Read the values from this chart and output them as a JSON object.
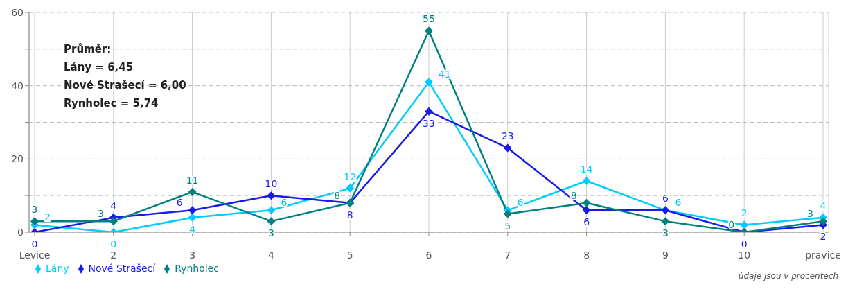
{
  "chart_data": {
    "type": "line",
    "categories": [
      "Levice",
      "2",
      "3",
      "4",
      "5",
      "6",
      "7",
      "8",
      "9",
      "10",
      "pravice"
    ],
    "series": [
      {
        "name": "Lány",
        "color": "#00ccff",
        "values": [
          2,
          0,
          4,
          6,
          12,
          41,
          6,
          14,
          6,
          2,
          4
        ]
      },
      {
        "name": "Nové Strašecí",
        "color": "#1a1aee",
        "values": [
          0,
          4,
          6,
          10,
          8,
          33,
          23,
          6,
          6,
          0,
          2
        ]
      },
      {
        "name": "Rynholec",
        "color": "#008080",
        "values": [
          3,
          3,
          11,
          3,
          8,
          55,
          5,
          8,
          3,
          0,
          3
        ]
      }
    ],
    "ylim": [
      0,
      60
    ],
    "yticks": [
      0,
      {
        "value": 10,
        "label": null
      },
      20,
      {
        "value": 30,
        "label": null
      },
      40,
      {
        "value": 50,
        "label": null
      },
      60
    ],
    "grid": true,
    "legend": "bottom left",
    "marker": "diamond",
    "line_style": "solid",
    "data_labels": true,
    "annotations": [
      "Průměr:",
      "Lány = 6,45",
      "Nové Strašecí = 6,00",
      "Rynholec = 5,74",
      "údaje jsou v procentech"
    ]
  }
}
